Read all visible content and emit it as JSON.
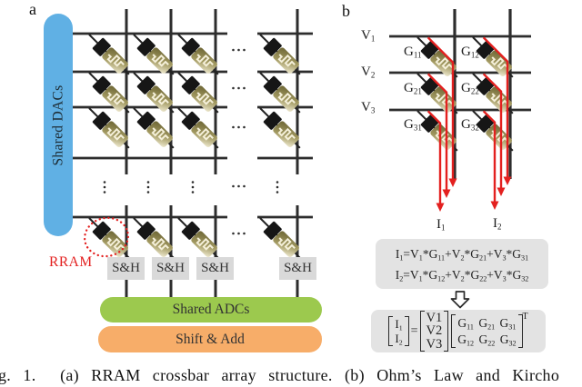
{
  "figure": {
    "panel_a_tag": "a",
    "panel_b_tag": "b",
    "caption": "g. 1.  (a) RRAM crossbar array structure. (b) Ohm’s Law and Kircho"
  },
  "panel_a": {
    "dac_label": "Shared DACs",
    "rram_label": "RRAM",
    "sh_labels": [
      "S&H",
      "S&H",
      "S&H",
      "S&H"
    ],
    "adc_label": "Shared ADCs",
    "shift_add_label": "Shift & Add"
  },
  "panel_b": {
    "v_labels": [
      {
        "base": "V",
        "sub": "1"
      },
      {
        "base": "V",
        "sub": "2"
      },
      {
        "base": "V",
        "sub": "3"
      }
    ],
    "g_labels": [
      {
        "base": "G",
        "sub": "11"
      },
      {
        "base": "G",
        "sub": "12"
      },
      {
        "base": "G",
        "sub": "21"
      },
      {
        "base": "G",
        "sub": "22"
      },
      {
        "base": "G",
        "sub": "31"
      },
      {
        "base": "G",
        "sub": "32"
      }
    ],
    "i_labels": [
      {
        "base": "I",
        "sub": "1"
      },
      {
        "base": "I",
        "sub": "2"
      }
    ],
    "equations": [
      "I_1=V_1*G_11+V_2*G_21+V_3*G_31",
      "I_2=V_1*G_12+V_2*G_22+V_3*G_32"
    ],
    "matrix": {
      "i_entries": [
        "I_1",
        "I_2"
      ],
      "equals": "=",
      "v_entries": [
        "V1",
        "V2",
        "V3"
      ],
      "g_rows": [
        "G_11 G_21 G_31",
        "G_12 G_22 G_32"
      ],
      "transpose": "T"
    }
  },
  "colors": {
    "dac_blue": "#60b0e4",
    "adc_green": "#9cc94e",
    "shift_orange": "#f7ad69",
    "accent_red": "#e3201f",
    "sh_gray": "#d9d9d9",
    "eq_gray": "#e3e3e3",
    "wire": "#2d2d2d"
  }
}
